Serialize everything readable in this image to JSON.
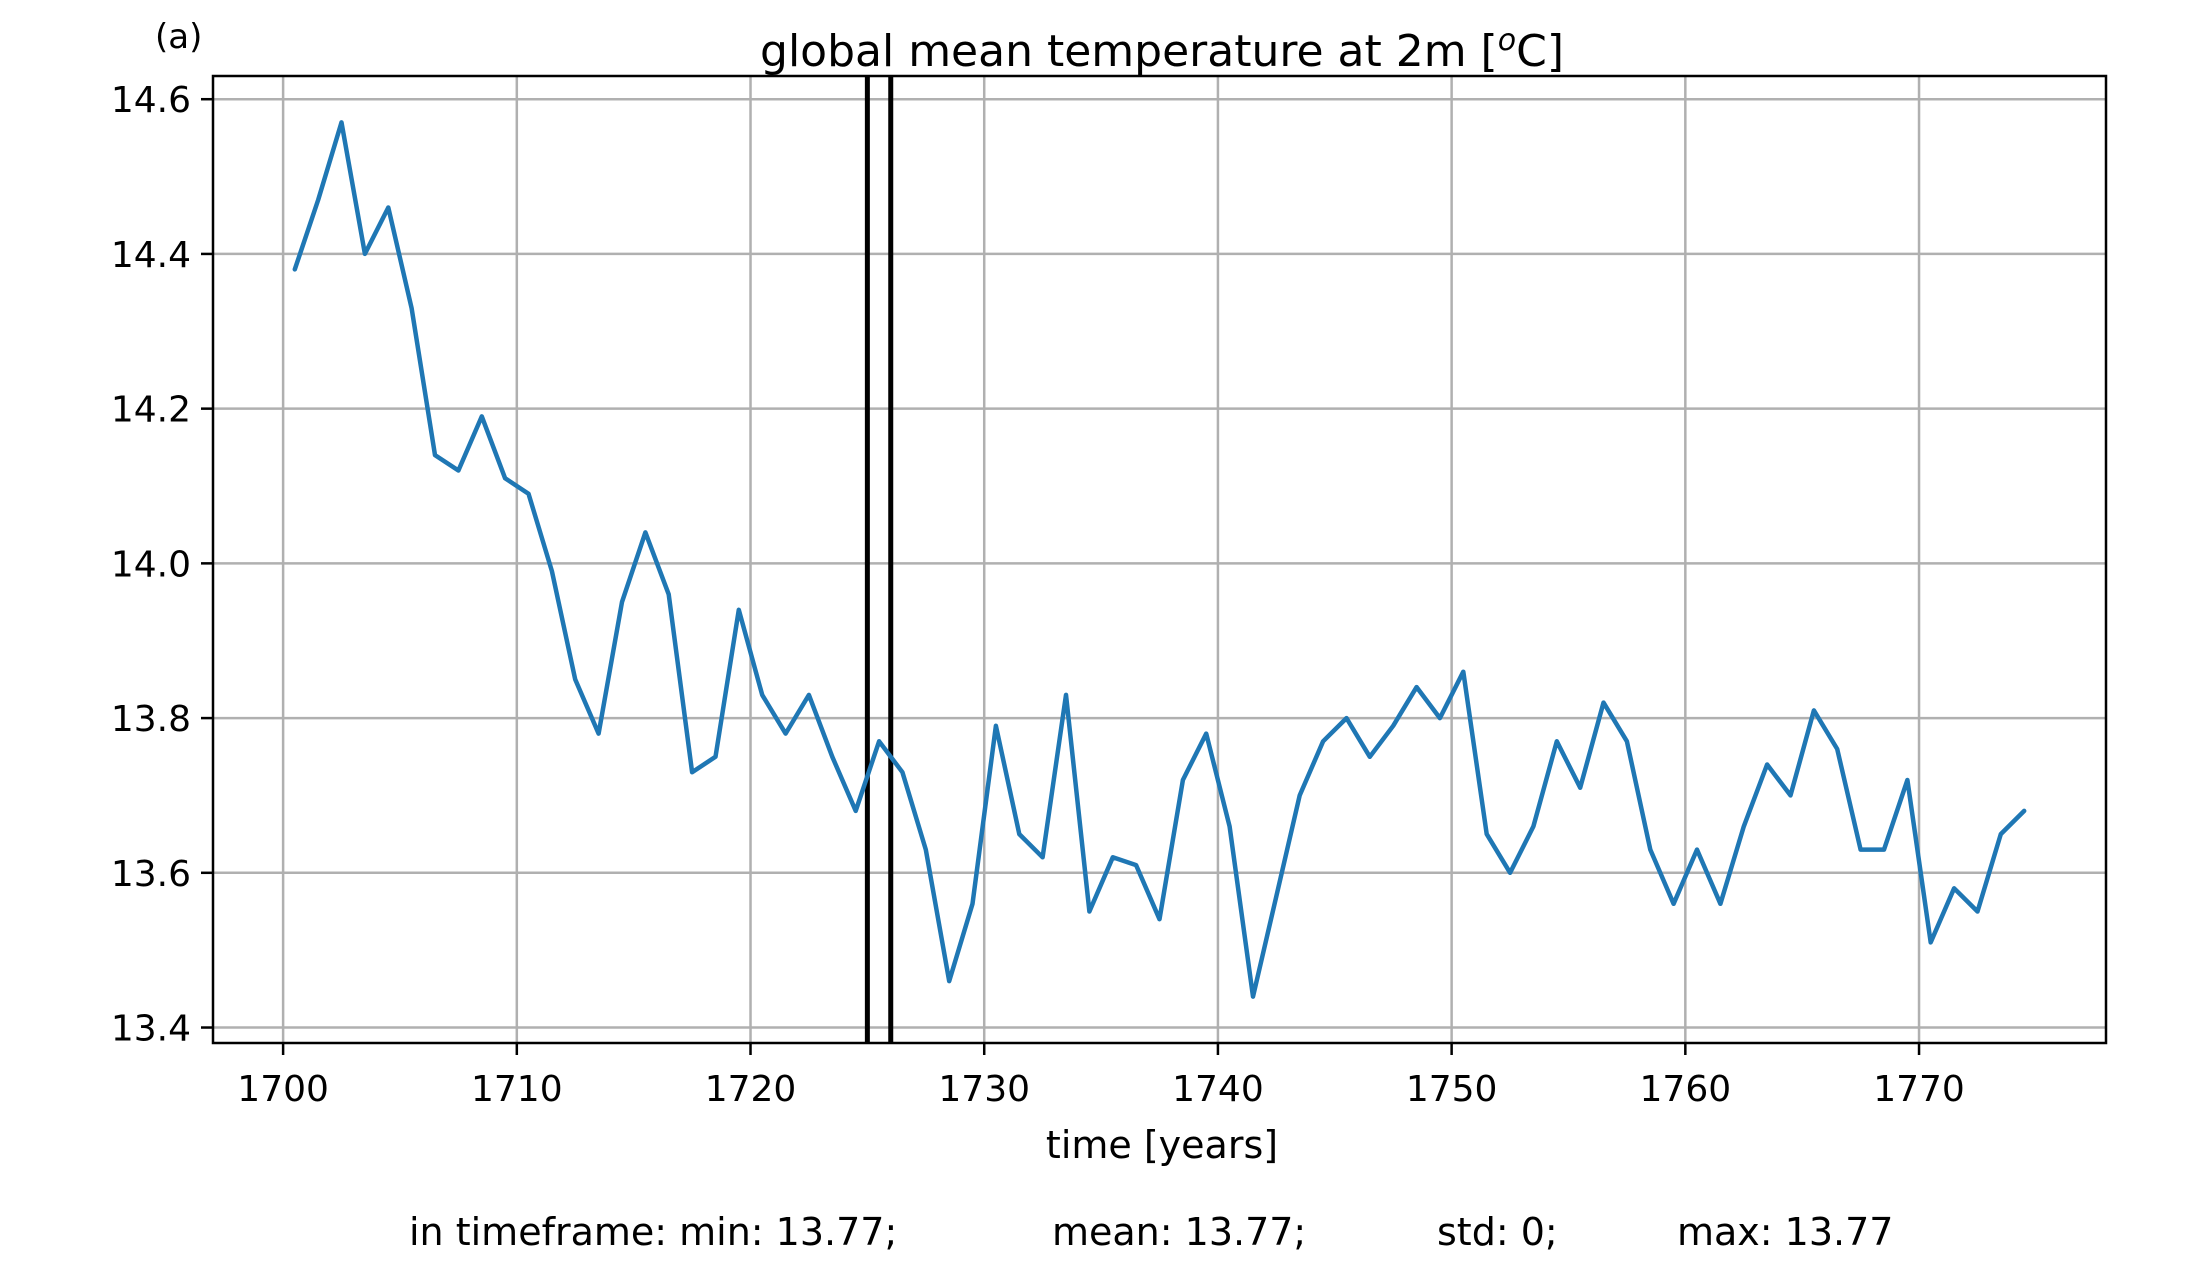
{
  "chart_data": {
    "type": "line",
    "panel_label": "(a)",
    "title": "global mean temperature at 2m [",
    "title_superscript": "o",
    "title_suffix": "C]",
    "xlabel": "time [years]",
    "ylabel": "",
    "xlim": [
      1697,
      1778
    ],
    "ylim": [
      13.38,
      14.63
    ],
    "grid": true,
    "xticks": [
      1700,
      1710,
      1720,
      1730,
      1740,
      1750,
      1760,
      1770
    ],
    "yticks": [
      13.4,
      13.6,
      13.8,
      14.0,
      14.2,
      14.4,
      14.6
    ],
    "ytick_labels": [
      "13.4",
      "13.6",
      "13.8",
      "14.0",
      "14.2",
      "14.4",
      "14.6"
    ],
    "series_color": "#1f77b4",
    "vlines": [
      1725.0,
      1726.0
    ],
    "vline_color": "#000000",
    "series": [
      {
        "x": [
          1700.5,
          1701.5,
          1702.5,
          1703.5,
          1704.5,
          1705.5,
          1706.5,
          1707.5,
          1708.5,
          1709.5,
          1710.5,
          1711.5,
          1712.5,
          1713.5,
          1714.5,
          1715.5,
          1716.5,
          1717.5,
          1718.5,
          1719.5,
          1720.5,
          1721.5,
          1722.5,
          1723.5,
          1724.5,
          1725.5,
          1726.5,
          1727.5,
          1728.5,
          1729.5,
          1730.5,
          1731.5,
          1732.5,
          1733.5,
          1734.5,
          1735.5,
          1736.5,
          1737.5,
          1738.5,
          1739.5,
          1740.5,
          1741.5,
          1742.5,
          1743.5,
          1744.5,
          1745.5,
          1746.5,
          1747.5,
          1748.5,
          1749.5,
          1750.5,
          1751.5,
          1752.5,
          1753.5,
          1754.5,
          1755.5,
          1756.5,
          1757.5,
          1758.5,
          1759.5,
          1760.5,
          1761.5,
          1762.5,
          1763.5,
          1764.5,
          1765.5,
          1766.5,
          1767.5,
          1768.5,
          1769.5,
          1770.5,
          1771.5,
          1772.5,
          1773.5,
          1774.5
        ],
        "y": [
          14.38,
          14.47,
          14.57,
          14.4,
          14.46,
          14.33,
          14.14,
          14.12,
          14.19,
          14.11,
          14.09,
          13.99,
          13.85,
          13.78,
          13.95,
          14.04,
          13.96,
          13.73,
          13.75,
          13.94,
          13.83,
          13.78,
          13.83,
          13.75,
          13.68,
          13.77,
          13.73,
          13.63,
          13.46,
          13.56,
          13.79,
          13.65,
          13.62,
          13.83,
          13.55,
          13.62,
          13.61,
          13.54,
          13.72,
          13.78,
          13.66,
          13.44,
          13.57,
          13.7,
          13.77,
          13.8,
          13.75,
          13.79,
          13.84,
          13.8,
          13.86,
          13.65,
          13.6,
          13.66,
          13.77,
          13.71,
          13.82,
          13.77,
          13.63,
          13.56,
          13.63,
          13.56,
          13.66,
          13.74,
          13.7,
          13.81,
          13.76,
          13.63,
          13.63,
          13.72,
          13.51,
          13.58,
          13.55,
          13.65,
          13.68
        ]
      }
    ]
  },
  "footer": {
    "min_text": "in timeframe: min: 13.77;",
    "mean_text": "mean: 13.77;",
    "std_text": "std: 0;",
    "max_text": "max: 13.77"
  }
}
